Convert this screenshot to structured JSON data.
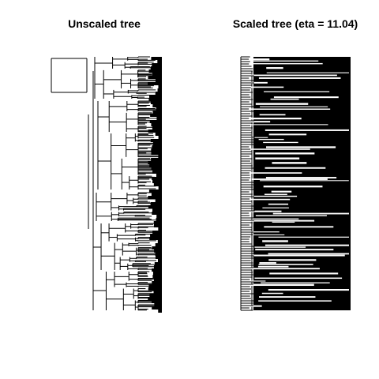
{
  "titles": {
    "left": "Unscaled tree",
    "right": "Scaled tree (eta = 11.04)"
  },
  "colors": {
    "background": "#ffffff",
    "ink": "#000000"
  }
}
